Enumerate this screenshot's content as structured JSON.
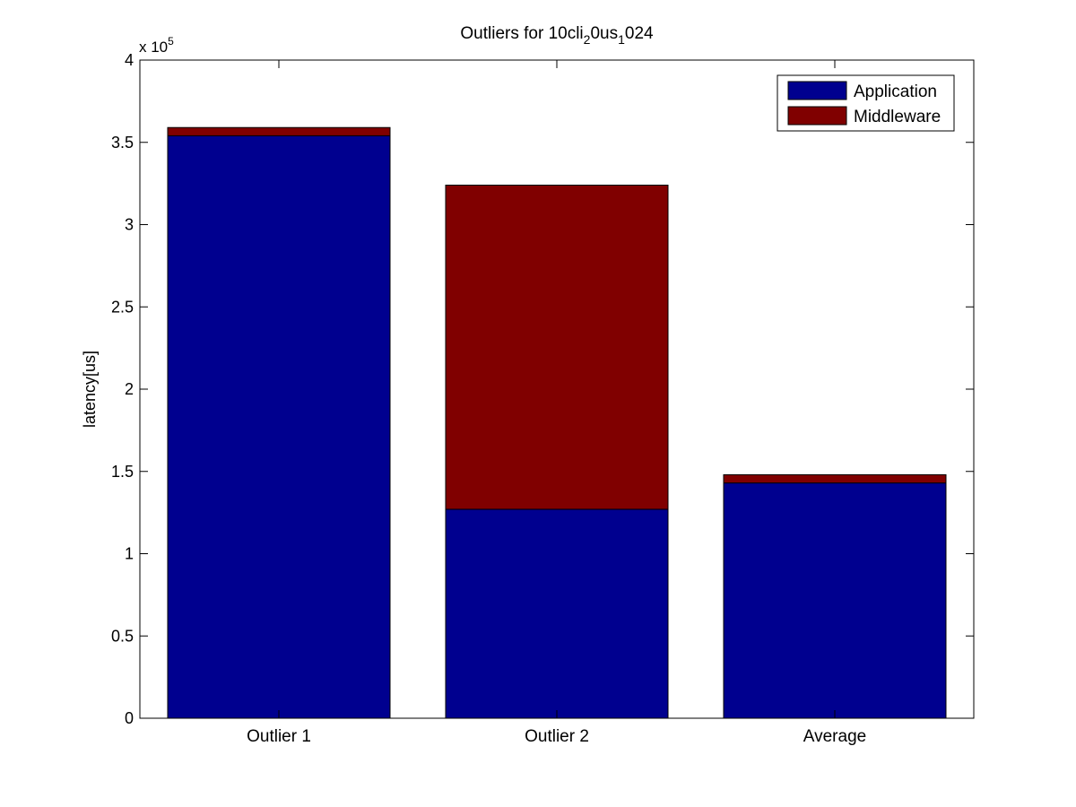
{
  "chart_data": {
    "type": "bar",
    "stacked": true,
    "title": {
      "text": "Outliers for 10cli",
      "parts": [
        {
          "text": "Outliers for 10cli",
          "sub": false
        },
        {
          "text": "2",
          "sub": true
        },
        {
          "text": "0us",
          "sub": false
        },
        {
          "text": "1",
          "sub": true
        },
        {
          "text": "024",
          "sub": false
        }
      ]
    },
    "xlabel": "",
    "ylabel": "latency[us]",
    "exponent_label": "x 10",
    "exponent_power": "5",
    "categories": [
      "Outlier 1",
      "Outlier 2",
      "Average"
    ],
    "series": [
      {
        "name": "Application",
        "color": "#00008F",
        "values": [
          354000,
          127000,
          143000
        ]
      },
      {
        "name": "Middleware",
        "color": "#800000",
        "values": [
          5000,
          197000,
          5000
        ]
      }
    ],
    "ylim": [
      0,
      400000
    ],
    "yticks": [
      0,
      50000,
      100000,
      150000,
      200000,
      250000,
      300000,
      350000,
      400000
    ],
    "ytick_labels": [
      "0",
      "0.5",
      "1",
      "1.5",
      "2",
      "2.5",
      "3",
      "3.5",
      "4"
    ],
    "grid": false,
    "legend_position": "top-right"
  }
}
